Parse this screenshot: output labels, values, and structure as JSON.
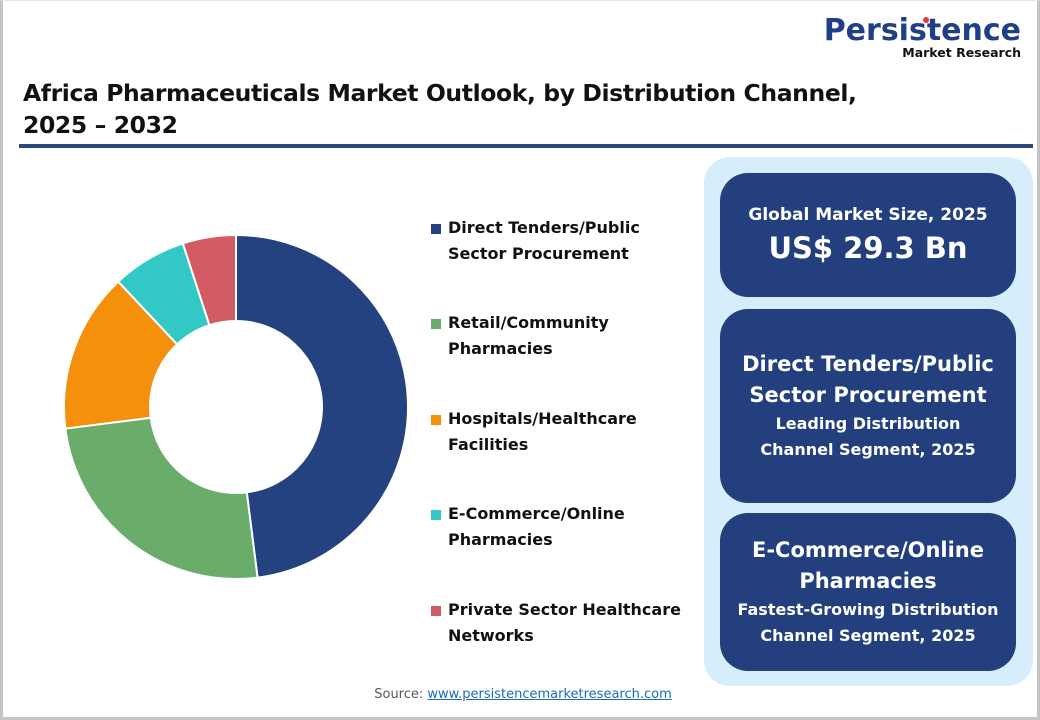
{
  "logo": {
    "main": "Persistence",
    "sub": "Market Research"
  },
  "title": {
    "line1": "Africa Pharmaceuticals Market Outlook, by Distribution Channel,",
    "line2": "2025 – 2032"
  },
  "legend": [
    {
      "line1": "Direct Tenders/Public",
      "line2": "Sector Procurement",
      "color": "#24427f"
    },
    {
      "line1": "Retail/Community",
      "line2": "Pharmacies",
      "color": "#6aac6a"
    },
    {
      "line1": "Hospitals/Healthcare",
      "line2": "Facilities",
      "color": "#f5900c"
    },
    {
      "line1": "E-Commerce/Online",
      "line2": "Pharmacies",
      "color": "#32c8c6"
    },
    {
      "line1": "Private Sector Healthcare",
      "line2": "Networks",
      "color": "#d35c64"
    }
  ],
  "panel": {
    "card1": {
      "label": "Global Market Size, 2025",
      "value": "US$ 29.3 Bn"
    },
    "card2": {
      "head1": "Direct Tenders/Public",
      "head2": "Sector Procurement",
      "sub1": "Leading Distribution",
      "sub2": "Channel Segment, 2025"
    },
    "card3": {
      "head1": "E-Commerce/Online",
      "head2": "Pharmacies",
      "sub1": "Fastest-Growing Distribution",
      "sub2": "Channel Segment, 2025"
    }
  },
  "source": {
    "label": "Source: ",
    "link": "www.persistencemarketresearch.com"
  },
  "colors": {
    "navy": "#24427f",
    "panel_bg": "#d6eefb",
    "card_bg": "#233f7e",
    "rule": "#2c4a7e"
  },
  "chart_data": {
    "type": "pie",
    "variant": "donut",
    "title": "Africa Pharmaceuticals Market Outlook, by Distribution Channel, 2025 – 2032",
    "categories": [
      "Direct Tenders/Public Sector Procurement",
      "Retail/Community Pharmacies",
      "Hospitals/Healthcare Facilities",
      "E-Commerce/Online Pharmacies",
      "Private Sector Healthcare Networks"
    ],
    "values": [
      48,
      25,
      15,
      7,
      5
    ],
    "unit": "% share (estimated from slice angles)",
    "colors": [
      "#24427f",
      "#6aac6a",
      "#f5900c",
      "#32c8c6",
      "#d35c64"
    ],
    "start_angle": "12 o'clock, clockwise",
    "data_labels": false,
    "legend_position": "right"
  }
}
